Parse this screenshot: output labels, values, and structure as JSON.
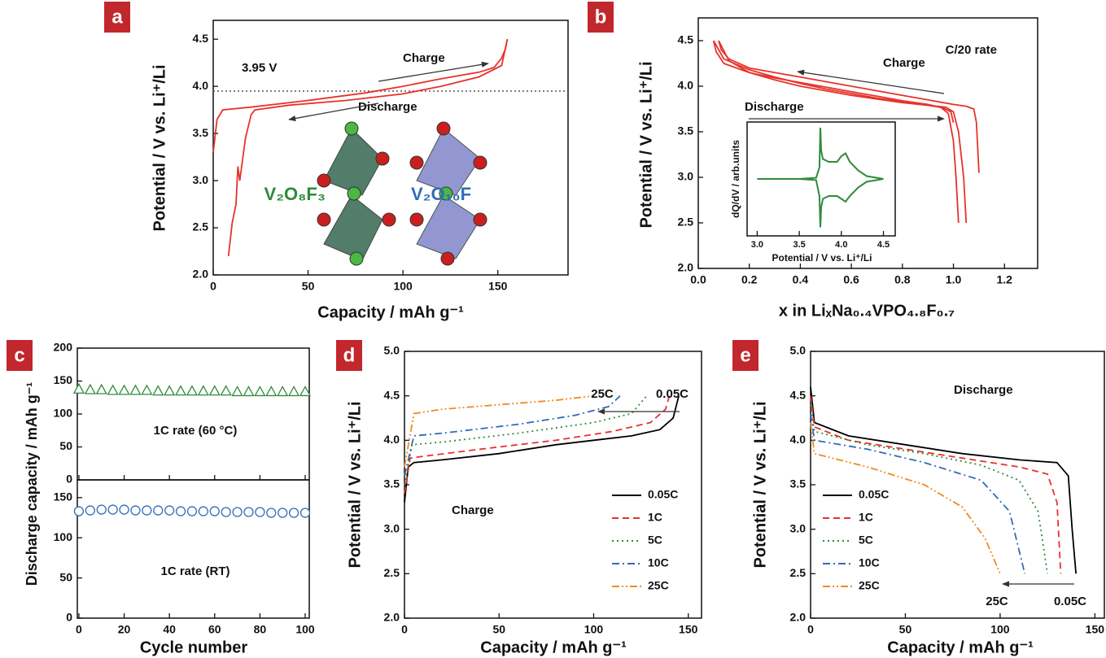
{
  "chart_data": [
    {
      "panel": "a",
      "type": "line",
      "xlabel": "Capacity / mAh g⁻¹",
      "ylabel": "Potential / V vs. Li⁺/Li",
      "xlim": [
        0,
        187
      ],
      "ylim": [
        2.0,
        4.7
      ],
      "xticks": [
        0,
        50,
        100,
        150
      ],
      "yticks": [
        {
          "value": 2.0,
          "label": "2.0"
        },
        2.5,
        {
          "value": 3.0,
          "label": "3.0"
        },
        3.5,
        {
          "value": 4.0,
          "label": "4.0"
        },
        4.5
      ],
      "reference_line": {
        "value": 3.95,
        "label": "3.95 V"
      },
      "annotations": [
        "Charge",
        "Discharge",
        "V₂O₈F₃",
        "V₂O₁₀F"
      ],
      "series": [
        {
          "color": "#e8322b",
          "dash": "solid",
          "x": [
            0,
            2,
            5,
            20,
            50,
            80,
            100,
            120,
            140,
            148,
            152,
            154,
            155
          ],
          "values": [
            3.3,
            3.65,
            3.75,
            3.78,
            3.85,
            3.93,
            4.0,
            4.08,
            4.15,
            4.2,
            4.3,
            4.4,
            4.5
          ]
        },
        {
          "color": "#e8322b",
          "dash": "solid",
          "x": [
            155,
            152,
            140,
            120,
            100,
            70,
            40,
            22,
            20,
            17,
            14,
            13,
            12,
            10,
            8
          ],
          "values": [
            4.5,
            4.22,
            4.1,
            4.0,
            3.92,
            3.85,
            3.8,
            3.75,
            3.7,
            3.45,
            3.0,
            3.15,
            2.75,
            2.55,
            2.2
          ]
        }
      ]
    },
    {
      "panel": "b",
      "type": "line",
      "xlabel": "x in LiₓNa₀.₄VPO₄.₈F₀.₇",
      "ylabel": "Potential / V vs. Li⁺/Li",
      "xlim": [
        0,
        1.33
      ],
      "ylim": [
        2.0,
        4.75
      ],
      "xticks": [
        {
          "value": 0.0,
          "label": "0.0"
        },
        0.2,
        0.4,
        0.6,
        0.8,
        {
          "value": 1.0,
          "label": "1.0"
        },
        1.2
      ],
      "yticks": [
        {
          "value": 2.0,
          "label": "2.0"
        },
        2.5,
        {
          "value": 3.0,
          "label": "3.0"
        },
        3.5,
        {
          "value": 4.0,
          "label": "4.0"
        },
        4.5
      ],
      "annotations": [
        "C/20 rate",
        "Charge",
        "Discharge"
      ],
      "series": [
        {
          "color": "#e8322b",
          "dash": "solid",
          "x": [
            0.06,
            0.1,
            0.2,
            0.3,
            0.4,
            0.5,
            0.6,
            0.7,
            0.8,
            0.9,
            0.95,
            0.98,
            1.0,
            1.01,
            1.02
          ],
          "values": [
            4.5,
            4.3,
            4.18,
            4.1,
            4.03,
            3.97,
            3.92,
            3.87,
            3.83,
            3.79,
            3.77,
            3.7,
            3.4,
            3.0,
            2.5
          ]
        },
        {
          "color": "#e8322b",
          "dash": "solid",
          "x": [
            0.08,
            0.12,
            0.2,
            0.3,
            0.4,
            0.5,
            0.6,
            0.7,
            0.8,
            0.9,
            0.97,
            1.0,
            1.02,
            1.04,
            1.05
          ],
          "values": [
            4.5,
            4.28,
            4.15,
            4.07,
            4.0,
            3.95,
            3.9,
            3.86,
            3.82,
            3.79,
            3.77,
            3.72,
            3.5,
            3.0,
            2.5
          ]
        },
        {
          "color": "#e8322b",
          "dash": "solid",
          "x": [
            1.1,
            1.09,
            1.08,
            1.05,
            1.0,
            0.9,
            0.8,
            0.7,
            0.6,
            0.5,
            0.4,
            0.3,
            0.2,
            0.12,
            0.09,
            0.08
          ],
          "values": [
            3.05,
            3.6,
            3.75,
            3.78,
            3.8,
            3.85,
            3.9,
            3.95,
            4.0,
            4.05,
            4.1,
            4.15,
            4.2,
            4.3,
            4.4,
            4.5
          ]
        },
        {
          "color": "#e8322b",
          "dash": "solid",
          "x": [
            1.0,
            0.99,
            0.96,
            0.9,
            0.8,
            0.7,
            0.6,
            0.5,
            0.4,
            0.3,
            0.2,
            0.1,
            0.07,
            0.06
          ],
          "values": [
            3.6,
            3.72,
            3.76,
            3.8,
            3.84,
            3.89,
            3.94,
            3.99,
            4.04,
            4.09,
            4.15,
            4.25,
            4.38,
            4.5
          ]
        }
      ],
      "inset": {
        "type": "line",
        "xlabel": "Potential / V vs. Li⁺/Li",
        "ylabel": "dQ/dV / arb.units",
        "xlim": [
          2.88,
          4.64
        ],
        "ylim": [
          -1,
          1
        ],
        "xticks": [
          {
            "value": 3.0,
            "label": "3.0"
          },
          3.5,
          {
            "value": 4.0,
            "label": "4.0"
          },
          4.5
        ],
        "series": [
          {
            "color": "#2e8b3a",
            "dash": "solid",
            "x": [
              3.0,
              3.5,
              3.7,
              3.74,
              3.75,
              3.76,
              3.78,
              3.85,
              3.95,
              4.0,
              4.05,
              4.1,
              4.2,
              4.3,
              4.5
            ],
            "values": [
              0,
              0,
              0.02,
              0.2,
              0.9,
              0.5,
              0.35,
              0.3,
              0.3,
              0.4,
              0.45,
              0.3,
              0.15,
              0.05,
              0
            ]
          },
          {
            "color": "#2e8b3a",
            "dash": "solid",
            "x": [
              3.0,
              3.5,
              3.7,
              3.74,
              3.75,
              3.76,
              3.78,
              3.85,
              3.95,
              4.0,
              4.05,
              4.1,
              4.2,
              4.3,
              4.5
            ],
            "values": [
              0,
              0,
              -0.02,
              -0.3,
              -0.85,
              -0.5,
              -0.35,
              -0.3,
              -0.3,
              -0.35,
              -0.4,
              -0.3,
              -0.15,
              -0.05,
              0
            ]
          }
        ]
      }
    },
    {
      "panel": "c",
      "type": "scatter",
      "xlabel": "Cycle number",
      "ylabel": "Discharge capacity / mAh g⁻¹",
      "xlim": [
        -0.7,
        101.8
      ],
      "xticks": [
        0,
        20,
        40,
        60,
        80,
        100
      ],
      "x": [
        0,
        5,
        10,
        15,
        20,
        25,
        30,
        35,
        40,
        45,
        50,
        55,
        60,
        65,
        70,
        75,
        80,
        85,
        90,
        95,
        100
      ],
      "subplots": [
        {
          "ylim": [
            0,
            200
          ],
          "yticks": [
            0,
            50,
            100,
            150,
            200
          ],
          "annotation": "1C rate (60 °C)",
          "color": "#2e8b3a",
          "marker": "triangle",
          "values": [
            138,
            137,
            137,
            136,
            136,
            136,
            136,
            135,
            135,
            135,
            135,
            135,
            135,
            135,
            134,
            134,
            134,
            134,
            134,
            134,
            134
          ]
        },
        {
          "ylim": [
            0,
            172
          ],
          "yticks": [
            0,
            50,
            100,
            150
          ],
          "annotation": "1C rate (RT)",
          "color": "#2f6db5",
          "marker": "circle",
          "values": [
            133,
            134,
            135,
            135,
            135,
            134,
            134,
            134,
            134,
            133,
            133,
            133,
            133,
            132,
            132,
            132,
            132,
            131,
            131,
            131,
            131
          ]
        }
      ]
    },
    {
      "panel": "d",
      "type": "line",
      "xlabel": "Capacity / mAh g⁻¹",
      "ylabel": "Potential / V vs. Li⁺/Li",
      "xlim": [
        0,
        157
      ],
      "ylim": [
        2.0,
        5.0
      ],
      "xticks": [
        0,
        50,
        100,
        150
      ],
      "yticks": [
        {
          "value": 2.0,
          "label": "2.0"
        },
        2.5,
        {
          "value": 3.0,
          "label": "3.0"
        },
        3.5,
        {
          "value": 4.0,
          "label": "4.0"
        },
        4.5,
        {
          "value": 5.0,
          "label": "5.0"
        }
      ],
      "legend": "lower right",
      "annotations": [
        "Charge",
        "25C",
        "0.05C"
      ],
      "series": [
        {
          "name": "0.05C",
          "color": "#000000",
          "dash": "solid",
          "x": [
            0,
            2,
            5,
            20,
            50,
            80,
            100,
            120,
            135,
            142,
            145
          ],
          "values": [
            3.3,
            3.7,
            3.75,
            3.78,
            3.85,
            3.95,
            4.0,
            4.05,
            4.12,
            4.25,
            4.5
          ]
        },
        {
          "name": "1C",
          "color": "#e8322b",
          "dash": "dashed",
          "x": [
            0,
            3,
            10,
            40,
            80,
            110,
            130,
            138,
            140
          ],
          "values": [
            3.4,
            3.8,
            3.82,
            3.9,
            4.0,
            4.1,
            4.2,
            4.35,
            4.5
          ]
        },
        {
          "name": "5C",
          "color": "#2e8b3a",
          "dash": "dotted",
          "x": [
            0,
            4,
            20,
            60,
            100,
            120,
            128
          ],
          "values": [
            3.5,
            3.95,
            3.98,
            4.08,
            4.2,
            4.3,
            4.5
          ]
        },
        {
          "name": "10C",
          "color": "#2f6db5",
          "dash": "dashdot",
          "x": [
            0,
            5,
            20,
            60,
            90,
            108,
            114
          ],
          "values": [
            3.6,
            4.05,
            4.08,
            4.18,
            4.28,
            4.38,
            4.5
          ]
        },
        {
          "name": "25C",
          "color": "#f08a24",
          "dash": "dashdotdot",
          "x": [
            0,
            5,
            20,
            50,
            80,
            100
          ],
          "values": [
            3.7,
            4.3,
            4.35,
            4.4,
            4.45,
            4.5
          ]
        }
      ]
    },
    {
      "panel": "e",
      "type": "line",
      "xlabel": "Capacity / mAh g⁻¹",
      "ylabel": "Potential / V vs. Li⁺/Li",
      "xlim": [
        0,
        155
      ],
      "ylim": [
        2.0,
        5.0
      ],
      "xticks": [
        0,
        50,
        100,
        150
      ],
      "yticks": [
        {
          "value": 2.0,
          "label": "2.0"
        },
        2.5,
        {
          "value": 3.0,
          "label": "3.0"
        },
        3.5,
        {
          "value": 4.0,
          "label": "4.0"
        },
        4.5,
        {
          "value": 5.0,
          "label": "5.0"
        }
      ],
      "legend": "lower left",
      "annotations": [
        "Discharge",
        "25C",
        "0.05C"
      ],
      "series": [
        {
          "name": "0.05C",
          "color": "#000000",
          "dash": "solid",
          "x": [
            0,
            2,
            20,
            50,
            80,
            110,
            130,
            136,
            138,
            140
          ],
          "values": [
            4.6,
            4.2,
            4.05,
            3.95,
            3.85,
            3.78,
            3.75,
            3.6,
            3.0,
            2.5
          ]
        },
        {
          "name": "1C",
          "color": "#e8322b",
          "dash": "dashed",
          "x": [
            0,
            2,
            20,
            50,
            80,
            110,
            125,
            130,
            132
          ],
          "values": [
            4.5,
            4.15,
            4.0,
            3.9,
            3.8,
            3.7,
            3.62,
            3.3,
            2.5
          ]
        },
        {
          "name": "5C",
          "color": "#2e8b3a",
          "dash": "dotted",
          "x": [
            0,
            2,
            30,
            60,
            90,
            110,
            120,
            125
          ],
          "values": [
            4.4,
            4.1,
            3.95,
            3.85,
            3.72,
            3.55,
            3.2,
            2.5
          ]
        },
        {
          "name": "10C",
          "color": "#2f6db5",
          "dash": "dashdot",
          "x": [
            0,
            2,
            30,
            60,
            90,
            105,
            113
          ],
          "values": [
            4.3,
            4.0,
            3.9,
            3.75,
            3.55,
            3.2,
            2.5
          ]
        },
        {
          "name": "25C",
          "color": "#f08a24",
          "dash": "dashdotdot",
          "x": [
            0,
            2,
            30,
            60,
            80,
            92,
            100
          ],
          "values": [
            4.2,
            3.85,
            3.7,
            3.5,
            3.25,
            2.9,
            2.5
          ]
        }
      ]
    }
  ]
}
